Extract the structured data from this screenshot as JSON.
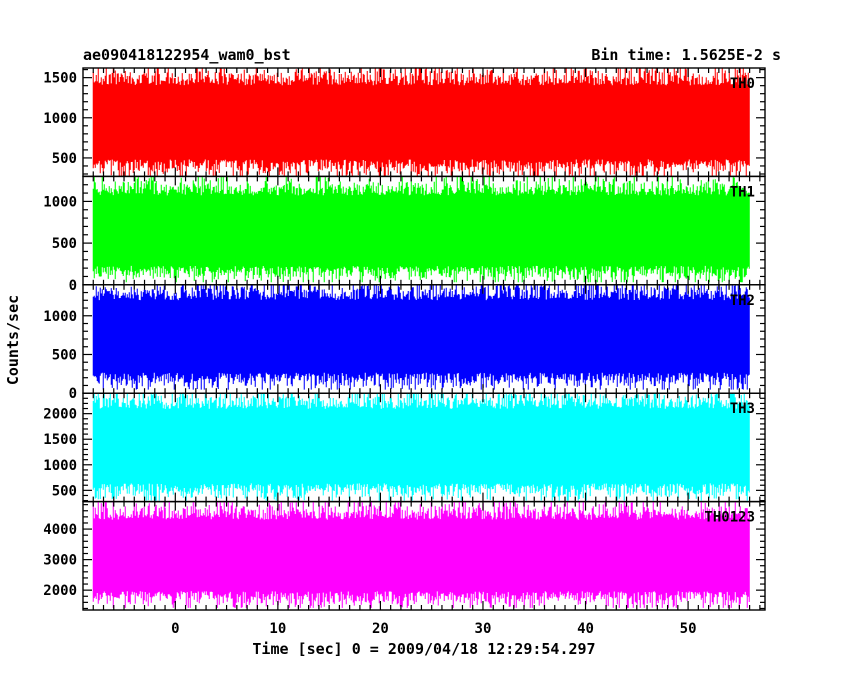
{
  "header": {
    "left_title": "ae090418122954_wam0_bst",
    "right_title": "Bin time: 1.5625E-2 s"
  },
  "chart_data": {
    "type": "line",
    "title": "ae090418122954_wam0_bst",
    "subtitle": "Bin time: 1.5625E-2 s",
    "xlabel": "Time [sec] 0 = 2009/04/18 12:29:54.297",
    "ylabel": "Counts/sec",
    "xlim": [
      -9,
      57.5
    ],
    "xticks": [
      0,
      10,
      20,
      30,
      40,
      50
    ],
    "x_data_range": [
      -8.0,
      56.0
    ],
    "bin_time_s": 0.015625,
    "grid": false,
    "panels": [
      {
        "name": "TH0",
        "color": "#ff0000",
        "ylim": [
          270,
          1620
        ],
        "yticks": [
          500,
          1000,
          1500
        ],
        "typical_min": 300,
        "typical_max": 1600,
        "mean": 820
      },
      {
        "name": "TH1",
        "color": "#00ff00",
        "ylim": [
          0,
          1300
        ],
        "yticks": [
          0,
          500,
          1000
        ],
        "typical_min": 60,
        "typical_max": 1250,
        "mean": 560
      },
      {
        "name": "TH2",
        "color": "#0000ff",
        "ylim": [
          0,
          1400
        ],
        "yticks": [
          0,
          500,
          1000
        ],
        "typical_min": 80,
        "typical_max": 1400,
        "mean": 660
      },
      {
        "name": "TH3",
        "color": "#00ffff",
        "ylim": [
          280,
          2400
        ],
        "yticks": [
          500,
          1000,
          1500,
          2000
        ],
        "typical_min": 350,
        "typical_max": 2400,
        "mean": 1420
      },
      {
        "name": "TH0123",
        "color": "#ff00ff",
        "ylim": [
          1350,
          4900
        ],
        "yticks": [
          2000,
          3000,
          4000
        ],
        "typical_min": 1500,
        "typical_max": 4800,
        "mean": 3150
      }
    ]
  }
}
